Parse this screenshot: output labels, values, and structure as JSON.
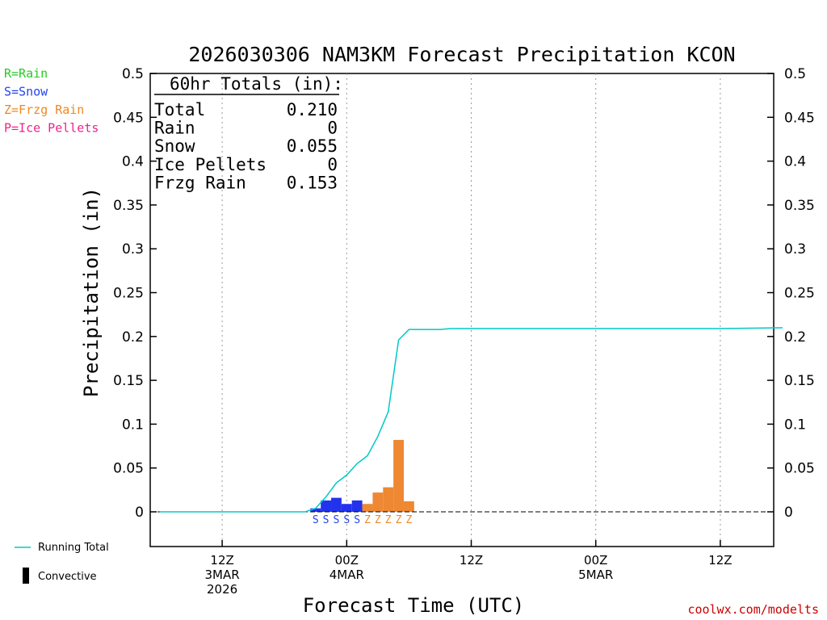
{
  "chart_data": {
    "type": "bar",
    "title": "2026030306 NAM3KM Forecast Precipitation KCON",
    "xlabel": "Forecast Time (UTC)",
    "ylabel": "Precipitation (in)",
    "ylim": [
      -0.04,
      0.5
    ],
    "xlim_hours": [
      0,
      60
    ],
    "yticks": [
      "0.5",
      "0.45",
      "0.4",
      "0.35",
      "0.3",
      "0.25",
      "0.2",
      "0.15",
      "0.1",
      "0.05",
      "0"
    ],
    "ytick_values": [
      0.5,
      0.45,
      0.4,
      0.35,
      0.3,
      0.25,
      0.2,
      0.15,
      0.1,
      0.05,
      0
    ],
    "xticks": [
      {
        "hour": 6,
        "line1": "12Z",
        "line2": "3MAR",
        "line3": "2026"
      },
      {
        "hour": 18,
        "line1": "00Z",
        "line2": "4MAR",
        "line3": ""
      },
      {
        "hour": 30,
        "line1": "12Z",
        "line2": "",
        "line3": ""
      },
      {
        "hour": 42,
        "line1": "00Z",
        "line2": "5MAR",
        "line3": ""
      },
      {
        "hour": 54,
        "line1": "12Z",
        "line2": "",
        "line3": ""
      }
    ],
    "type_legend": [
      {
        "text": "R=Rain",
        "color": "#22cc22"
      },
      {
        "text": "S=Snow",
        "color": "#2244ee"
      },
      {
        "text": "Z=Frzg Rain",
        "color": "#ee8822"
      },
      {
        "text": "P=Ice Pellets",
        "color": "#ee2288"
      }
    ],
    "totals": {
      "heading": "60hr Totals (in):",
      "rows": [
        {
          "label": "Total",
          "value": "0.210"
        },
        {
          "label": "Rain",
          "value": "0"
        },
        {
          "label": "Snow",
          "value": "0.055"
        },
        {
          "label": "Ice Pellets",
          "value": "0"
        },
        {
          "label": "Frzg Rain",
          "value": "0.153"
        }
      ]
    },
    "bars": [
      {
        "hour": 15,
        "value": 0.004,
        "ptype": "S",
        "color": "#2233ee"
      },
      {
        "hour": 16,
        "value": 0.013,
        "ptype": "S",
        "color": "#2233ee"
      },
      {
        "hour": 17,
        "value": 0.016,
        "ptype": "S",
        "color": "#2233ee"
      },
      {
        "hour": 18,
        "value": 0.009,
        "ptype": "S",
        "color": "#2233ee"
      },
      {
        "hour": 19,
        "value": 0.013,
        "ptype": "S",
        "color": "#2233ee"
      },
      {
        "hour": 20,
        "value": 0.009,
        "ptype": "Z",
        "color": "#ee8833"
      },
      {
        "hour": 21,
        "value": 0.022,
        "ptype": "Z",
        "color": "#ee8833"
      },
      {
        "hour": 22,
        "value": 0.028,
        "ptype": "Z",
        "color": "#ee8833"
      },
      {
        "hour": 23,
        "value": 0.082,
        "ptype": "Z",
        "color": "#ee8833"
      },
      {
        "hour": 24,
        "value": 0.012,
        "ptype": "Z",
        "color": "#ee8833"
      }
    ],
    "ptype_colors": {
      "S": "#2244ee",
      "Z": "#ee8822"
    },
    "running_total": {
      "name": "Running Total",
      "color": "#00c8c8",
      "points": [
        [
          0,
          0
        ],
        [
          14,
          0
        ],
        [
          15,
          0.004
        ],
        [
          16,
          0.017
        ],
        [
          17,
          0.033
        ],
        [
          18,
          0.042
        ],
        [
          19,
          0.055
        ],
        [
          20,
          0.064
        ],
        [
          21,
          0.086
        ],
        [
          22,
          0.114
        ],
        [
          23,
          0.196
        ],
        [
          24,
          0.208
        ],
        [
          27,
          0.208
        ],
        [
          28,
          0.209
        ],
        [
          40,
          0.209
        ],
        [
          54,
          0.209
        ],
        [
          60,
          0.21
        ]
      ]
    },
    "bottom_legend": [
      {
        "text": "Running Total",
        "kind": "line",
        "color": "#00c8c8"
      },
      {
        "text": "Convective",
        "kind": "bar",
        "color": "#000000"
      }
    ],
    "credit": "coolwx.com/modelts"
  }
}
